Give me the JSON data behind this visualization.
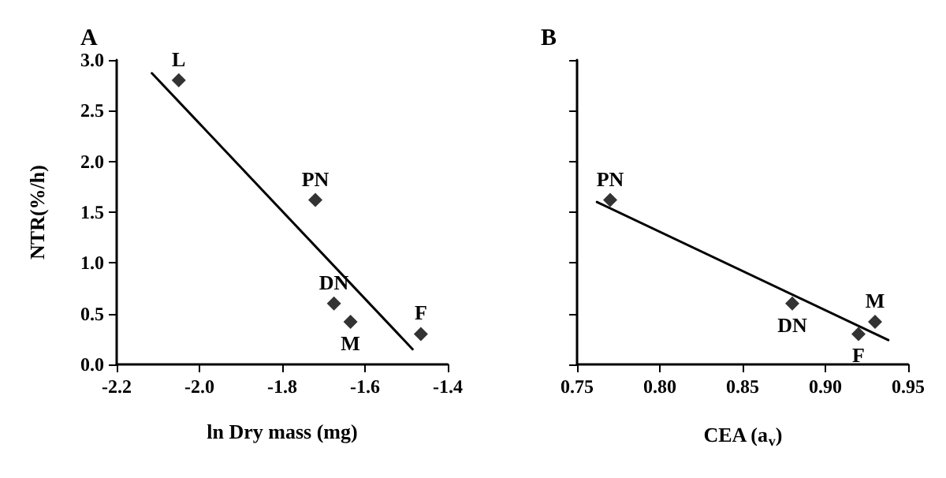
{
  "chart_data": [
    {
      "type": "scatter",
      "title": "A",
      "xlabel": "ln Dry mass (mg)",
      "ylabel": "NTR(%/h)",
      "series": [
        {
          "x": [
            -2.05,
            -1.72,
            -1.675,
            -1.635,
            -1.465
          ],
          "values": [
            2.8,
            1.62,
            0.6,
            0.42,
            0.3
          ],
          "color": "#000000",
          "marker": "diamond"
        },
        {
          "type": "line",
          "x": [
            -2.115,
            -1.485
          ],
          "values": [
            2.87,
            0.15
          ],
          "color": "#000000",
          "marker": "none",
          "line_style": "solid"
        }
      ],
      "xlim": [
        -2.2,
        -1.4
      ],
      "xticks": [
        -2.2,
        {
          "value": -2,
          "label": "-2.0"
        },
        -1.8,
        -1.6,
        -1.4
      ],
      "ylim": [
        0,
        3
      ],
      "yticks": [
        {
          "value": 0,
          "label": "0.0"
        },
        0.5,
        {
          "value": 1,
          "label": "1.0"
        },
        1.5,
        {
          "value": 2,
          "label": "2.0"
        },
        2.5,
        {
          "value": 3,
          "label": "3.0"
        }
      ],
      "annotations": [
        {
          "text": "L",
          "x": -2.05,
          "y": 2.8
        },
        {
          "text": "PN",
          "x": -1.72,
          "y": 1.62
        },
        {
          "text": "DN",
          "x": -1.675,
          "y": 0.6
        },
        {
          "text": "M",
          "x": -1.635,
          "y": 0.42
        },
        {
          "text": "F",
          "x": -1.465,
          "y": 0.3
        }
      ]
    },
    {
      "type": "scatter",
      "title": "B",
      "xlabel": "CEA (a$_{v}$)",
      "series": [
        {
          "x": [
            0.77,
            0.88,
            0.92,
            0.93
          ],
          "values": [
            1.62,
            0.6,
            0.3,
            0.42
          ],
          "color": "#000000",
          "marker": "diamond"
        },
        {
          "type": "line",
          "x": [
            0.762,
            0.938
          ],
          "values": [
            1.6,
            0.24
          ],
          "color": "#000000",
          "marker": "none",
          "line_style": "solid"
        }
      ],
      "xlim": [
        0.75,
        0.95
      ],
      "xticks": [
        0.75,
        {
          "value": 0.8,
          "label": "0.80"
        },
        0.85,
        {
          "value": 0.9,
          "label": "0.90"
        },
        0.95
      ],
      "ylim": [
        0,
        3
      ],
      "yticks": [
        0,
        0.5,
        1,
        1.5,
        2,
        2.5,
        3
      ],
      "tick_labels": "x",
      "annotations": [
        {
          "text": "PN",
          "x": 0.77,
          "y": 1.62
        },
        {
          "text": "DN",
          "x": 0.88,
          "y": 0.6
        },
        {
          "text": "F",
          "x": 0.92,
          "y": 0.3
        },
        {
          "text": "M",
          "x": 0.93,
          "y": 0.42
        }
      ]
    }
  ]
}
